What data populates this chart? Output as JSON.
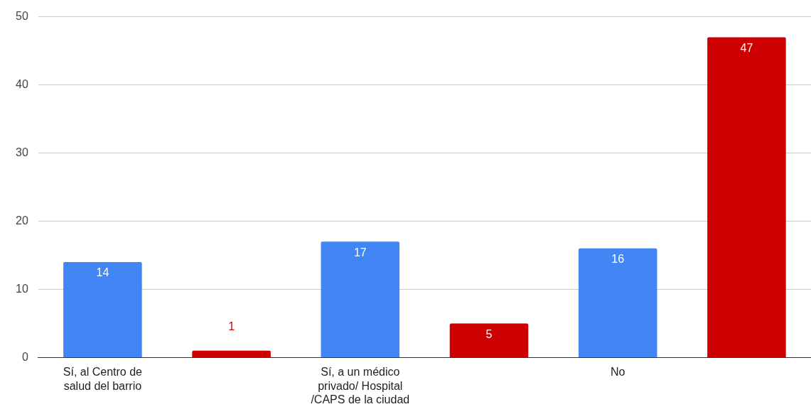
{
  "chart_data": {
    "type": "bar",
    "categories": [
      "Sí, al Centro de salud del barrio",
      null,
      "Sí, a un médico privado/ Hospital /CAPS de la ciudad",
      null,
      "No",
      null
    ],
    "values": [
      14,
      1,
      17,
      5,
      16,
      47
    ],
    "colors": [
      "#4285f4",
      "#cc0000",
      "#4285f4",
      "#cc0000",
      "#4285f4",
      "#cc0000"
    ],
    "ylim": [
      0,
      50
    ],
    "yticks": [
      0,
      10,
      20,
      30,
      40,
      50
    ],
    "grid": "y",
    "legend": false,
    "data_labels": true
  }
}
